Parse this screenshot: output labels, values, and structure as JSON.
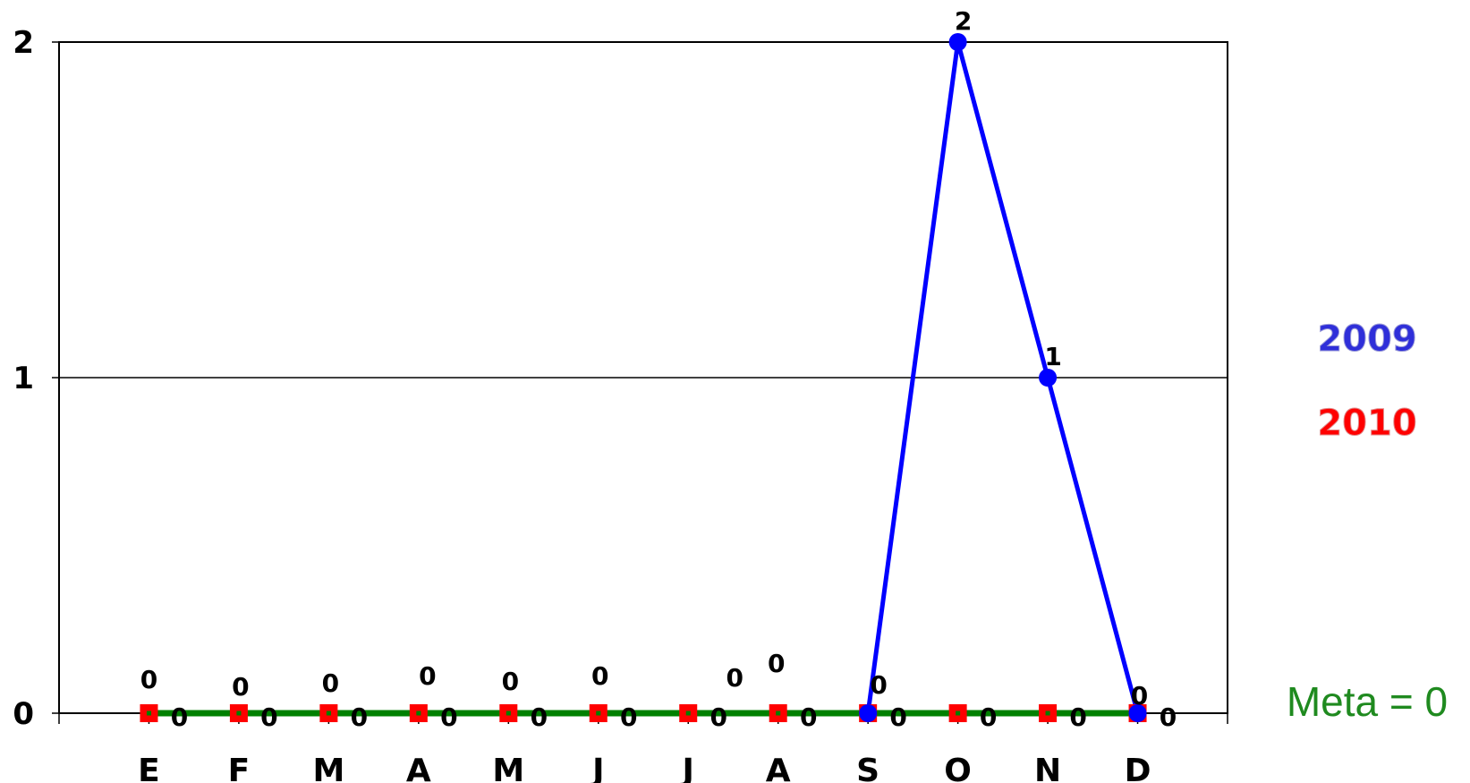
{
  "chart_data": {
    "type": "line",
    "categories": [
      "E",
      "F",
      "M",
      "A",
      "M",
      "J",
      "J",
      "A",
      "S",
      "O",
      "N",
      "D"
    ],
    "ylim": [
      0,
      2
    ],
    "yticks": [
      "0",
      "1",
      "2"
    ],
    "grid": true,
    "legend_position": "right",
    "series": [
      {
        "name": "2009",
        "color": "#0000ff",
        "marker": "circle",
        "values": [
          null,
          null,
          null,
          null,
          null,
          null,
          null,
          null,
          0,
          2,
          1,
          0
        ],
        "labels": [
          "0",
          "0",
          "0",
          "0",
          "0",
          "0",
          "0",
          "0",
          "0",
          "2",
          "1",
          "0"
        ]
      },
      {
        "name": "2010",
        "color": "#ff0000",
        "marker": "square",
        "values": [
          0,
          0,
          0,
          0,
          0,
          0,
          0,
          0,
          0,
          0,
          0,
          0
        ],
        "labels": [
          "0",
          "0",
          "0",
          "0",
          "0",
          "0",
          "0",
          "0",
          "0",
          "0",
          "0",
          "0"
        ]
      }
    ],
    "target": {
      "label": "Meta = 0",
      "value": 0,
      "color": "#008000"
    }
  }
}
